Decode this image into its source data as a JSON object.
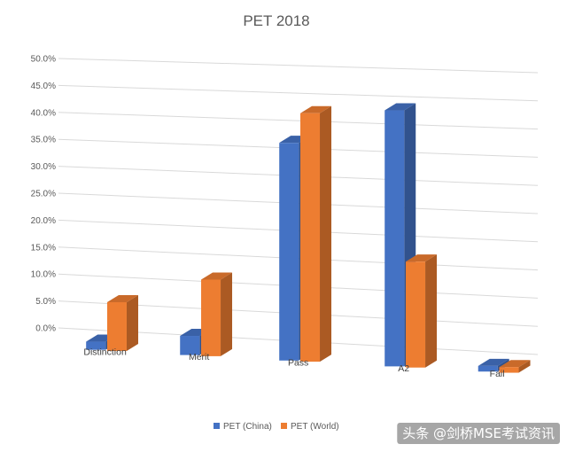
{
  "chart_data": {
    "type": "bar",
    "title": "PET 2018",
    "categories": [
      "Distinction",
      "Merit",
      "Pass",
      "A2",
      "Fail"
    ],
    "series": [
      {
        "name": "PET (China)",
        "color": "#4472C4",
        "values": [
          1.5,
          3.5,
          39.5,
          46.0,
          1.0
        ]
      },
      {
        "name": "PET (World)",
        "color": "#ED7D31",
        "values": [
          9.0,
          14.0,
          45.0,
          19.0,
          1.0
        ]
      }
    ],
    "ylim": [
      0,
      50
    ],
    "y_ticks": [
      "0.0%",
      "5.0%",
      "10.0%",
      "15.0%",
      "20.0%",
      "25.0%",
      "30.0%",
      "35.0%",
      "40.0%",
      "45.0%",
      "50.0%"
    ],
    "grid": true,
    "legend_position": "bottom",
    "view": "3d-perspective"
  },
  "watermark": "头条 @剑桥MSE考试资讯"
}
